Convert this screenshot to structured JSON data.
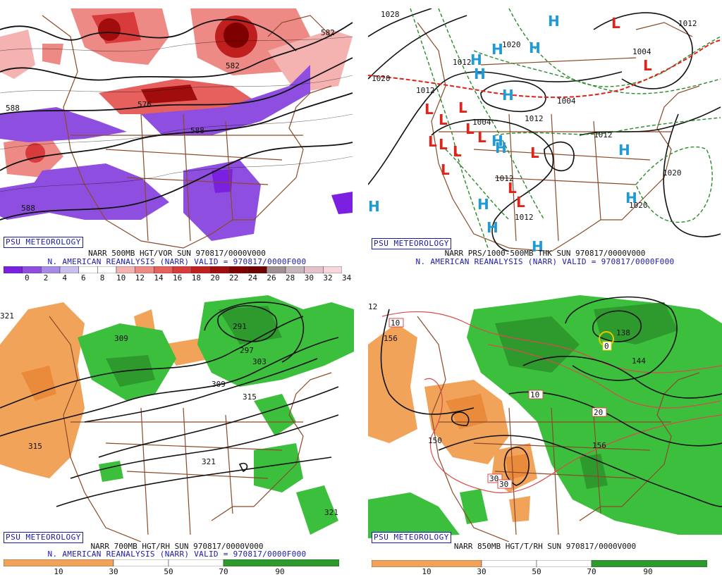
{
  "panels": [
    {
      "badge": "PSU METEOROLOGY",
      "title": "NARR 500MB HGT/VOR SUN 970817/0000V000",
      "subtitle": "N. AMERICAN REANALYSIS (NARR) VALID = 970817/0000F000",
      "contour_labels": [
        "588",
        "576",
        "588",
        "588",
        "582",
        "582"
      ],
      "colorbar": {
        "ticks": [
          "0",
          "2",
          "4",
          "6",
          "8",
          "10",
          "12",
          "14",
          "16",
          "18",
          "20",
          "22",
          "24",
          "26",
          "28",
          "30",
          "32",
          "34"
        ],
        "colors": [
          "#7b1fe0",
          "#8e4fe0",
          "#a78ae6",
          "#c9c0ee",
          "#ffffff",
          "#ffffff",
          "#f4b3b0",
          "#ee8a85",
          "#e6605e",
          "#d73b3b",
          "#c01f1f",
          "#a10d0d",
          "#7f0000",
          "#6e0000",
          "#a08f93",
          "#c6b5b9",
          "#e6c0cb",
          "#f5d7dc"
        ]
      }
    },
    {
      "badge": "PSU METEOROLOGY",
      "title": "NARR PRS/1000-500MB THK SUN 970817/0000V000",
      "subtitle": "N. AMERICAN REANALYSIS (NARR) VALID = 970817/0000F000",
      "contour_labels": [
        "1028",
        "1020",
        "1012",
        "1020",
        "1012",
        "1004",
        "1012",
        "1004",
        "1012",
        "1012",
        "1020",
        "1020",
        "1012",
        "1012",
        "1004"
      ],
      "colors": {
        "high": "#1f9ad6",
        "low": "#e0231b",
        "thickness": "#2a8a2a",
        "front": "#e0231b"
      }
    },
    {
      "badge": "PSU METEOROLOGY",
      "title": "NARR 700MB HGT/RH SUN 970817/0000V000",
      "subtitle": "N. AMERICAN REANALYSIS (NARR) VALID = 970817/0000F000",
      "contour_labels": [
        "321",
        "309",
        "291",
        "297",
        "303",
        "309",
        "315",
        "315",
        "321",
        "321"
      ],
      "colorbar": {
        "ticks": [
          "10",
          "30",
          "50",
          "70",
          "90"
        ]
      }
    },
    {
      "badge": "PSU METEOROLOGY",
      "title": "NARR 850MB HGT/T/RH SUN 970817/0000V000",
      "contour_labels": [
        "156",
        "150",
        "138",
        "144",
        "156",
        "12"
      ],
      "temp_labels": [
        "10",
        "10",
        "20",
        "30",
        "30",
        "0"
      ],
      "colorbar": {
        "ticks": [
          "10",
          "30",
          "50",
          "70",
          "90"
        ]
      }
    }
  ]
}
